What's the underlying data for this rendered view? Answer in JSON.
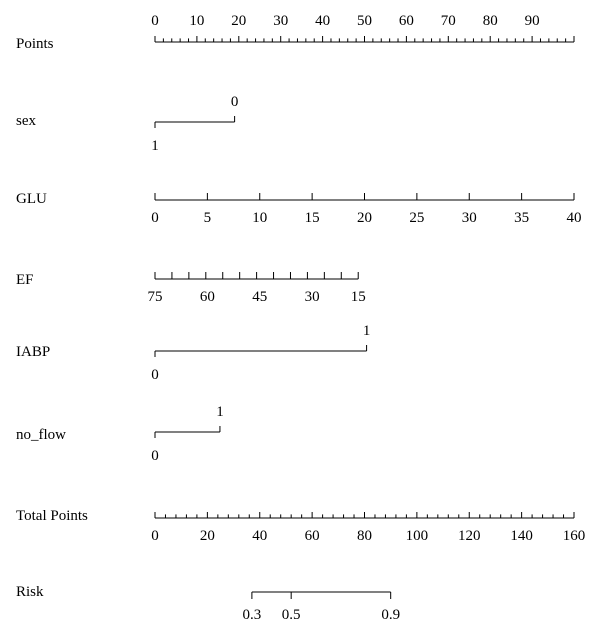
{
  "chart_data": {
    "type": "nomogram",
    "title": "",
    "rows": [
      {
        "key": "points",
        "label": "Points",
        "axis": {
          "range": [
            0,
            100
          ],
          "ticks_labeled": [
            0,
            10,
            20,
            30,
            40,
            50,
            60,
            70,
            80,
            90
          ],
          "minor_step": 2,
          "major_step": 10
        }
      },
      {
        "key": "sex",
        "label": "sex",
        "categories": [
          {
            "label": "1",
            "points": 0
          },
          {
            "label": "0",
            "points": 19
          }
        ]
      },
      {
        "key": "glu",
        "label": "GLU",
        "values": [
          0,
          5,
          10,
          15,
          20,
          25,
          30,
          35,
          40
        ],
        "points": [
          0,
          12.5,
          25,
          37.5,
          50,
          62.5,
          75,
          87.5,
          100
        ]
      },
      {
        "key": "ef",
        "label": "EF",
        "values": [
          75,
          60,
          45,
          30,
          15
        ],
        "points": [
          0,
          12.5,
          25,
          37.5,
          48.5
        ],
        "minor_step_value": 5
      },
      {
        "key": "iabp",
        "label": "IABP",
        "categories": [
          {
            "label": "0",
            "points": 0
          },
          {
            "label": "1",
            "points": 50.5
          }
        ]
      },
      {
        "key": "no_flow",
        "label": "no_flow",
        "categories": [
          {
            "label": "0",
            "points": 0
          },
          {
            "label": "1",
            "points": 15.5
          }
        ]
      },
      {
        "key": "total",
        "label": "Total Points",
        "axis": {
          "range": [
            0,
            160
          ],
          "ticks_labeled": [
            0,
            20,
            40,
            60,
            80,
            100,
            120,
            140,
            160
          ],
          "minor_step": 4,
          "major_step": 20
        }
      },
      {
        "key": "risk",
        "label": "Risk",
        "values": [
          0.3,
          0.5,
          0.9
        ],
        "total_points": [
          37,
          52,
          90
        ]
      }
    ]
  }
}
